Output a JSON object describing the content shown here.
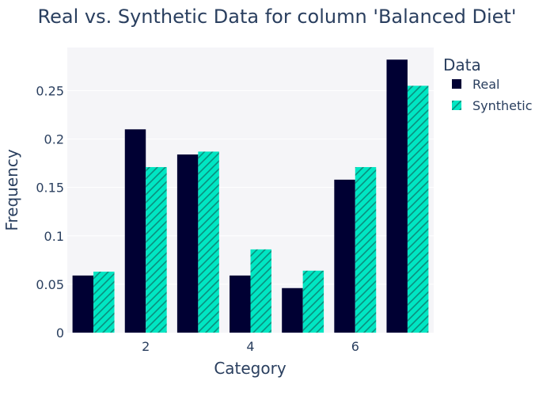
{
  "chart_data": {
    "type": "bar",
    "title": "Real vs. Synthetic Data for column 'Balanced Diet'",
    "xlabel": "Category",
    "ylabel": "Frequency",
    "categories": [
      1,
      2,
      3,
      4,
      5,
      6,
      7
    ],
    "x_ticks": [
      "2",
      "4",
      "6"
    ],
    "y_ticks": [
      "0",
      "0.05",
      "0.1",
      "0.15",
      "0.2",
      "0.25"
    ],
    "ylim": [
      0,
      0.2945
    ],
    "xlim": [
      0.5,
      7.5
    ],
    "grid": true,
    "legend_position": "right",
    "legend_title": "Data",
    "series": [
      {
        "name": "Real",
        "values": [
          0.059,
          0.21,
          0.184,
          0.059,
          0.046,
          0.158,
          0.282
        ],
        "color": "#000033",
        "pattern": "none"
      },
      {
        "name": "Synthetic",
        "values": [
          0.063,
          0.171,
          0.187,
          0.086,
          0.064,
          0.171,
          0.255
        ],
        "color": "#00e6c3",
        "pattern": "diagonal-hatch"
      }
    ],
    "colors": {
      "plot_background": "#f5f5f8",
      "grid": "#ffffff",
      "text": "#2a3f5f"
    }
  }
}
